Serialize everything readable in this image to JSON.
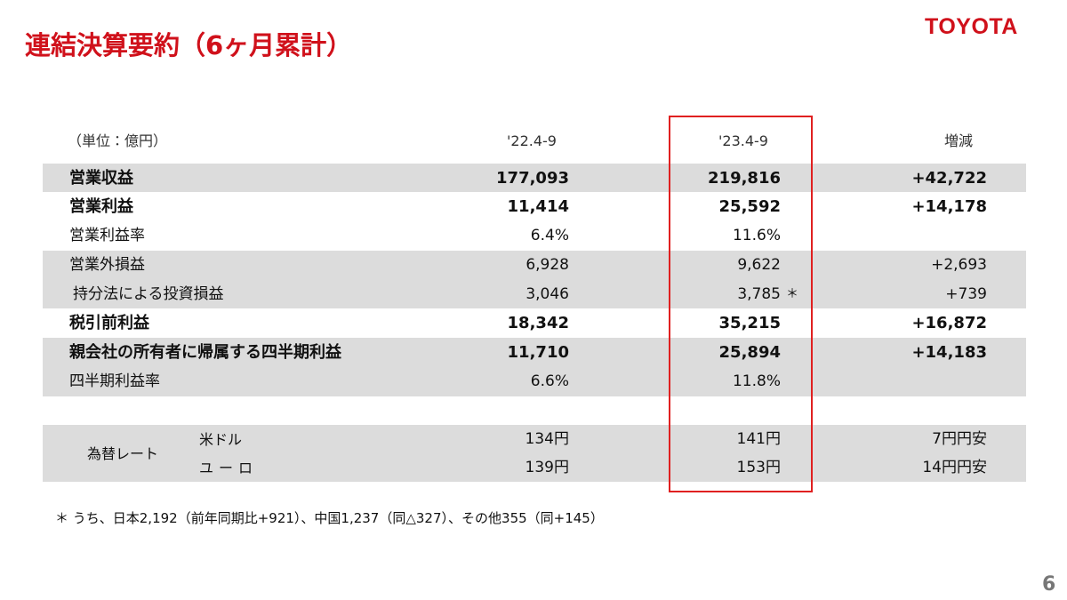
{
  "header": {
    "title": "連結決算要約（6ヶ月累計）",
    "logo": "TOYOTA"
  },
  "table": {
    "unit": "（単位：億円）",
    "columns": [
      "'22.4-9",
      "'23.4-9",
      "増減"
    ],
    "rows": [
      {
        "label": "営業収益",
        "prev": "177,093",
        "curr": "219,816",
        "change": "+42,722"
      },
      {
        "label": "営業利益",
        "prev": "11,414",
        "curr": "25,592",
        "change": "+14,178"
      },
      {
        "label": "営業利益率",
        "prev": "6.4%",
        "curr": "11.6%"
      },
      {
        "label": "営業外損益",
        "prev": "6,928",
        "curr": "9,622",
        "change": "+2,693"
      },
      {
        "label": "持分法による投資損益",
        "prev": "3,046",
        "curr": "3,785",
        "curr_mark": "＊",
        "change": "+739"
      },
      {
        "label": "税引前利益",
        "prev": "18,342",
        "curr": "35,215",
        "change": "+16,872"
      },
      {
        "label": "親会社の所有者に帰属する四半期利益",
        "prev": "11,710",
        "curr": "25,894",
        "change": "+14,183"
      },
      {
        "label": "四半期利益率",
        "prev": "6.6%",
        "curr": "11.8%"
      }
    ],
    "fx": {
      "label": "為替レート",
      "rows": [
        {
          "label": "米ドル",
          "prev": "134円",
          "curr": "141円",
          "change": "7円円安"
        },
        {
          "label": "ユーロ",
          "prev": "139円",
          "curr": "153円",
          "change": "14円円安"
        }
      ]
    }
  },
  "note": "＊ うち、日本2,192（前年同期比+921）、中国1,237（同△327）、その他355（同+145）",
  "page": "6"
}
